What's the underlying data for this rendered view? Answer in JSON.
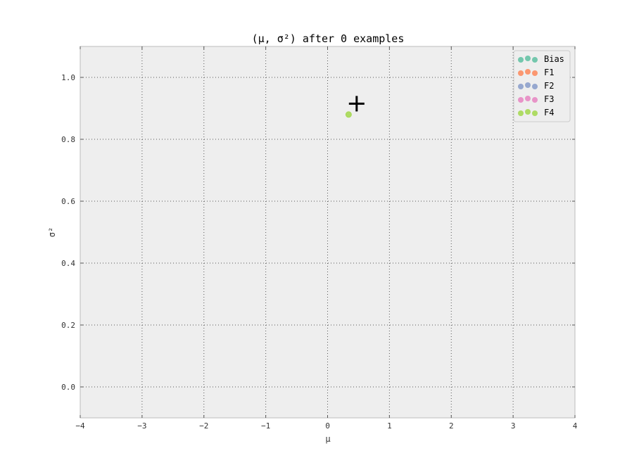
{
  "chart_data": {
    "type": "scatter",
    "title": "(μ, σ²) after 0 examples",
    "xlabel": "μ",
    "ylabel": "σ²",
    "xlim": [
      -4,
      4
    ],
    "ylim": [
      -0.1,
      1.1
    ],
    "xticks": [
      -4,
      -3,
      -2,
      -1,
      0,
      1,
      2,
      3,
      4
    ],
    "yticks": [
      0.0,
      0.2,
      0.4,
      0.6,
      0.8,
      1.0
    ],
    "ytick_labels": [
      "0.0",
      "0.2",
      "0.4",
      "0.6",
      "0.8",
      "1.0"
    ],
    "grid": true,
    "legend_position": "top-right",
    "series": [
      {
        "name": "Bias",
        "color": "#66c2a5",
        "points": []
      },
      {
        "name": "F1",
        "color": "#fc8d62",
        "points": []
      },
      {
        "name": "F2",
        "color": "#8da0cb",
        "points": []
      },
      {
        "name": "F3",
        "color": "#e78ac3",
        "points": []
      },
      {
        "name": "F4",
        "color": "#a6d854",
        "points": [
          [
            0.34,
            0.88
          ]
        ]
      }
    ],
    "marker": {
      "symbol": "plus",
      "x": 0.47,
      "y": 0.915,
      "color": "#000000"
    }
  }
}
